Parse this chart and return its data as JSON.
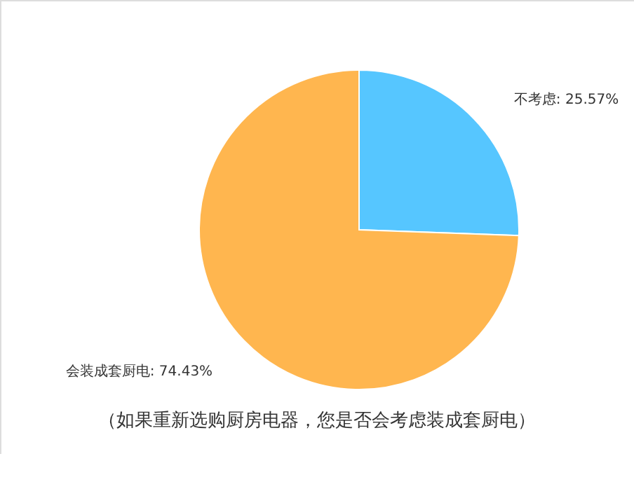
{
  "chart_data": {
    "type": "pie",
    "title": "（如果重新选购厨房电器，您是否会考虑装成套厨电）",
    "categories": [
      "不考虑",
      "会装成套厨电"
    ],
    "values": [
      25.57,
      74.43
    ],
    "colors": [
      "#56c6ff",
      "#ffb64f"
    ],
    "value_labels": [
      "25.57%",
      "74.43%"
    ]
  }
}
